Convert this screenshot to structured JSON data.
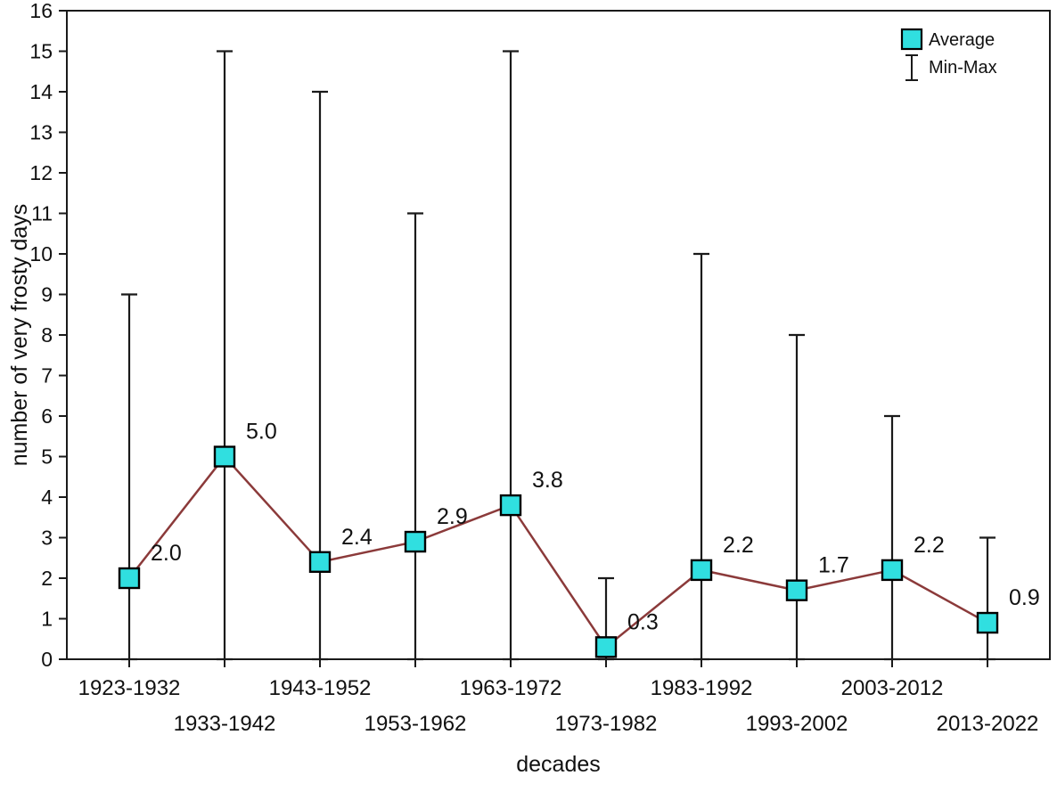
{
  "chart_data": {
    "type": "line",
    "title": "",
    "xlabel": "decades",
    "ylabel": "number of very frosty days",
    "ylim": [
      0,
      16
    ],
    "ytick_step": 1,
    "grid": false,
    "legend_position": "top-right",
    "categories": [
      "1923-1932",
      "1933-1942",
      "1943-1952",
      "1953-1962",
      "1963-1972",
      "1973-1982",
      "1983-1992",
      "1993-2002",
      "2003-2012",
      "2013-2022"
    ],
    "series": [
      {
        "name": "Average",
        "values": [
          2.0,
          5.0,
          2.4,
          2.9,
          3.8,
          0.3,
          2.2,
          1.7,
          2.2,
          0.9
        ]
      },
      {
        "name": "Min",
        "values": [
          0,
          0,
          0,
          0,
          0,
          0,
          0,
          0,
          0,
          0
        ]
      },
      {
        "name": "Max",
        "values": [
          9,
          15,
          14,
          11,
          15,
          2,
          10,
          8,
          6,
          3
        ]
      }
    ],
    "point_labels": [
      "2.0",
      "5.0",
      "2.4",
      "2.9",
      "3.8",
      "0.3",
      "2.2",
      "1.7",
      "2.2",
      "0.9"
    ],
    "legend": [
      {
        "label": "Average",
        "symbol": "square"
      },
      {
        "label": "Min-Max",
        "symbol": "error-bar"
      }
    ],
    "colors": {
      "marker_fill": "#30dfe0",
      "marker_stroke": "#000000",
      "line": "#8b3a3a",
      "error_bar": "#1a1a1a",
      "axis": "#1a1a1a",
      "text": "#111111",
      "background": "#ffffff"
    }
  }
}
